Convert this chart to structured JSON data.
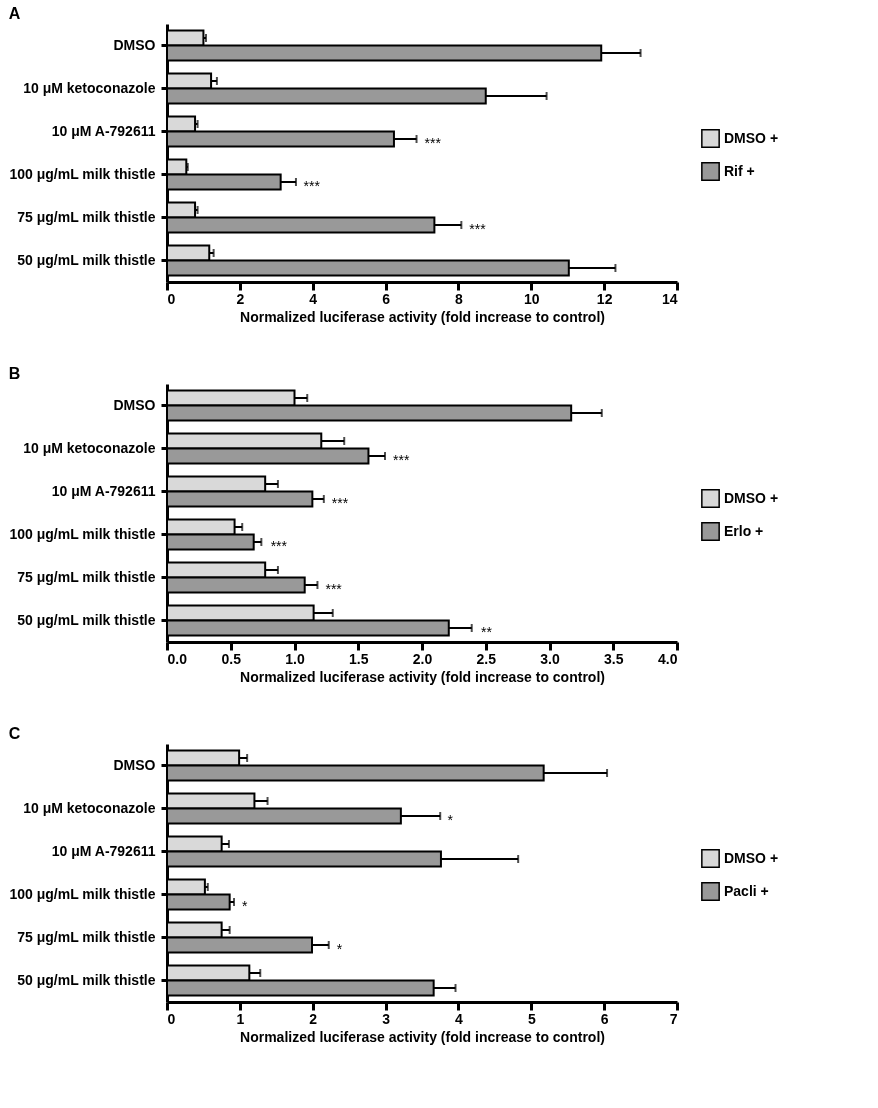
{
  "chart_data": [
    {
      "type": "bar",
      "title": "A",
      "orientation": "horizontal",
      "xlabel": "Normalized luciferase activity (fold increase to control)",
      "categories": [
        "DMSO",
        "10 μM ketoconazole",
        "10 μM A-792611",
        "100 μg/mL milk thistle",
        "75 μg/mL milk thistle",
        "50 μg/mL milk thistle"
      ],
      "series": [
        {
          "name": "DMSO +",
          "color": "#d9d9d9",
          "values": [
            1.0,
            1.21,
            0.77,
            0.53,
            0.77,
            1.16
          ],
          "errors": [
            0.07,
            0.16,
            0.07,
            0.04,
            0.07,
            0.12
          ]
        },
        {
          "name": "Rif +",
          "color": "#999999",
          "values": [
            11.92,
            8.75,
            6.23,
            3.12,
            7.34,
            11.03
          ],
          "errors": [
            1.08,
            1.67,
            0.62,
            0.42,
            0.74,
            1.28
          ]
        }
      ],
      "xlim": [
        0,
        14
      ],
      "xticks": [
        0,
        2,
        4,
        6,
        8,
        10,
        12,
        14
      ],
      "grid": false,
      "legend": "right",
      "annotations": [
        {
          "text": "***",
          "x": 6.85,
          "y": "10 μM A-792611"
        },
        {
          "text": "***",
          "x": 3.53,
          "y": "100 μg/mL milk thistle"
        },
        {
          "text": "***",
          "x": 8.08,
          "y": "75 μg/mL milk thistle"
        }
      ]
    },
    {
      "type": "bar",
      "title": "B",
      "orientation": "horizontal",
      "xlabel": "Normalized luciferase activity (fold increase to control)",
      "categories": [
        "DMSO",
        "10 μM ketoconazole",
        "10 μM A-792611",
        "100 μg/mL milk thistle",
        "75 μg/mL milk thistle",
        "50 μg/mL milk thistle"
      ],
      "series": [
        {
          "name": "DMSO +",
          "color": "#d9d9d9",
          "values": [
            1.0,
            1.21,
            0.77,
            0.53,
            0.77,
            1.15
          ],
          "errors": [
            0.1,
            0.18,
            0.1,
            0.06,
            0.1,
            0.15
          ]
        },
        {
          "name": "Erlo +",
          "color": "#999999",
          "values": [
            3.17,
            1.58,
            1.14,
            0.68,
            1.08,
            2.21
          ],
          "errors": [
            0.24,
            0.13,
            0.09,
            0.06,
            0.1,
            0.18
          ]
        }
      ],
      "xlim": [
        0,
        4
      ],
      "xticks": [
        {
          "value": 0,
          "label": "0.0"
        },
        {
          "value": 0.5,
          "label": "0.5"
        },
        {
          "value": 1,
          "label": "1.0"
        },
        {
          "value": 1.5,
          "label": "1.5"
        },
        {
          "value": 2,
          "label": "2.0"
        },
        {
          "value": 2.5,
          "label": "2.5"
        },
        {
          "value": 3,
          "label": "3.0"
        },
        {
          "value": 3.5,
          "label": "3.5"
        },
        {
          "value": 4,
          "label": "4.0"
        }
      ],
      "grid": false,
      "legend": "right",
      "annotations": [
        {
          "text": "***",
          "x": 1.71,
          "y": "10 μM ketoconazole"
        },
        {
          "text": "***",
          "x": 1.23,
          "y": "10 μM A-792611"
        },
        {
          "text": "***",
          "x": 0.75,
          "y": "100 μg/mL milk thistle"
        },
        {
          "text": "***",
          "x": 1.18,
          "y": "75 μg/mL milk thistle"
        },
        {
          "text": "**",
          "x": 2.4,
          "y": "50 μg/mL milk thistle"
        }
      ]
    },
    {
      "type": "bar",
      "title": "C",
      "orientation": "horizontal",
      "xlabel": "Normalized luciferase activity (fold increase to control)",
      "categories": [
        "DMSO",
        "10 μM ketoconazole",
        "10 μM A-792611",
        "100 μg/mL milk thistle",
        "75 μg/mL milk thistle",
        "50 μg/mL milk thistle"
      ],
      "series": [
        {
          "name": "DMSO +",
          "color": "#d9d9d9",
          "values": [
            0.99,
            1.2,
            0.75,
            0.52,
            0.75,
            1.13
          ],
          "errors": [
            0.11,
            0.18,
            0.1,
            0.04,
            0.11,
            0.15
          ]
        },
        {
          "name": "Pacli +",
          "color": "#999999",
          "values": [
            5.17,
            3.21,
            3.76,
            0.86,
            1.99,
            3.66
          ],
          "errors": [
            0.87,
            0.54,
            1.06,
            0.06,
            0.23,
            0.3
          ]
        }
      ],
      "xlim": [
        0,
        7
      ],
      "xticks": [
        0,
        1,
        2,
        3,
        4,
        5,
        6,
        7
      ],
      "grid": false,
      "legend": "right",
      "annotations": [
        {
          "text": "*",
          "x": 3.74,
          "y": "10 μM ketoconazole"
        },
        {
          "text": "*",
          "x": 0.92,
          "y": "100 μg/mL milk thistle"
        },
        {
          "text": "*",
          "x": 2.22,
          "y": "75 μg/mL milk thistle"
        }
      ]
    }
  ]
}
